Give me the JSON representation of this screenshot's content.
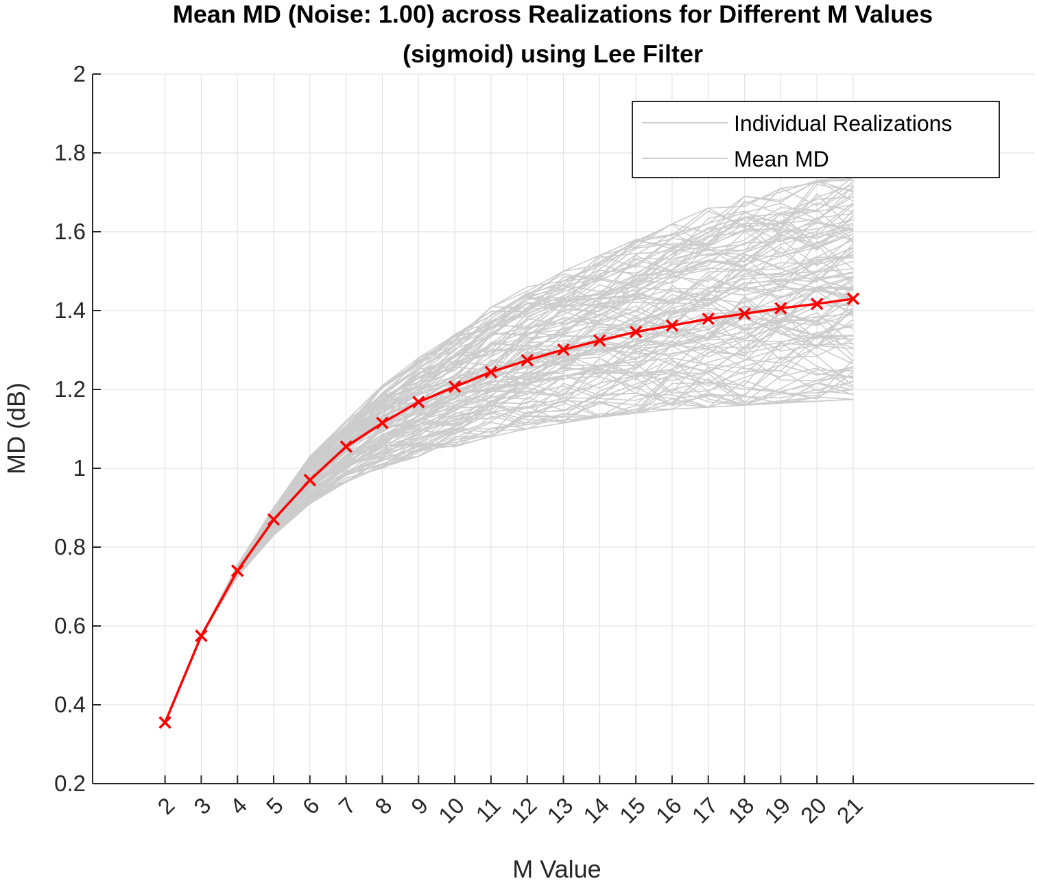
{
  "chart_data": {
    "type": "line",
    "title": "Mean MD (Noise: 1.00) across Realizations for Different M Values",
    "subtitle": "(sigmoid) using Lee Filter",
    "xlabel": "M Value",
    "ylabel": "MD (dB)",
    "xlim": [
      0,
      26
    ],
    "ylim": [
      0.2,
      2
    ],
    "x_ticks": [
      "2",
      "3",
      "4",
      "5",
      "6",
      "7",
      "8",
      "9",
      "10",
      "11",
      "12",
      "13",
      "14",
      "15",
      "16",
      "17",
      "18",
      "19",
      "20",
      "21"
    ],
    "y_ticks": [
      "0.2",
      "0.4",
      "0.6",
      "0.8",
      "1",
      "1.2",
      "1.4",
      "1.6",
      "1.8",
      "2"
    ],
    "grid": true,
    "legend": {
      "placement": "top-right",
      "entries": [
        "Individual Realizations",
        "Mean MD"
      ]
    },
    "x": [
      2,
      3,
      4,
      5,
      6,
      7,
      8,
      9,
      10,
      11,
      12,
      13,
      14,
      15,
      16,
      17,
      18,
      19,
      20,
      21
    ],
    "series": [
      {
        "name": "Mean MD",
        "color": "#ff0000",
        "marker": "x",
        "values": [
          0.355,
          0.575,
          0.74,
          0.87,
          0.97,
          1.055,
          1.115,
          1.168,
          1.207,
          1.244,
          1.274,
          1.301,
          1.324,
          1.346,
          1.362,
          1.379,
          1.392,
          1.406,
          1.417,
          1.43
        ]
      },
      {
        "name": "Individual Realizations",
        "color": "#cccccc",
        "band_low": [
          0.355,
          0.575,
          0.725,
          0.83,
          0.91,
          0.965,
          1.0,
          1.03,
          1.055,
          1.08,
          1.1,
          1.115,
          1.13,
          1.14,
          1.15,
          1.155,
          1.16,
          1.165,
          1.17,
          1.175
        ],
        "band_high": [
          0.355,
          0.575,
          0.755,
          0.9,
          1.03,
          1.12,
          1.21,
          1.28,
          1.34,
          1.41,
          1.46,
          1.5,
          1.54,
          1.58,
          1.62,
          1.66,
          1.69,
          1.71,
          1.73,
          1.74
        ]
      }
    ]
  }
}
